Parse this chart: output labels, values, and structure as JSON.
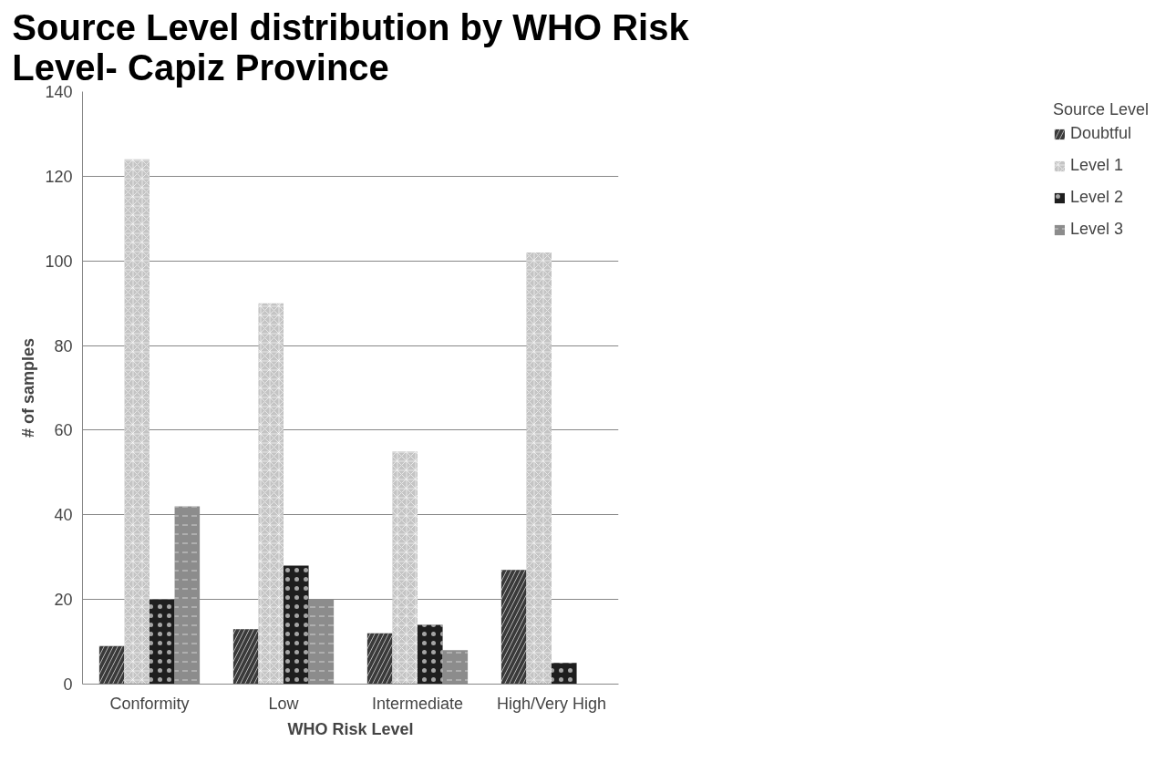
{
  "chart_data": {
    "type": "bar",
    "title": "Source Level distribution by WHO Risk Level- Capiz Province",
    "xlabel": "WHO Risk Level",
    "ylabel": "# of samples",
    "legend_title": "Source Level",
    "categories": [
      "Conformity",
      "Low",
      "Intermediate",
      "High/Very High"
    ],
    "series": [
      {
        "name": "Doubtful",
        "color": "#3a3a3a",
        "values": [
          9,
          13,
          12,
          27
        ]
      },
      {
        "name": "Level 1",
        "color": "#c4c4c4",
        "values": [
          124,
          90,
          55,
          102
        ]
      },
      {
        "name": "Level 2",
        "color": "#1e1e1e",
        "values": [
          20,
          28,
          14,
          5
        ]
      },
      {
        "name": "Level 3",
        "color": "#8c8c8c",
        "values": [
          42,
          20,
          8,
          0
        ]
      }
    ],
    "ylim": [
      0,
      140
    ],
    "yticks": [
      0,
      20,
      40,
      60,
      80,
      100,
      120,
      140
    ],
    "grid": "y",
    "legend": "right"
  }
}
